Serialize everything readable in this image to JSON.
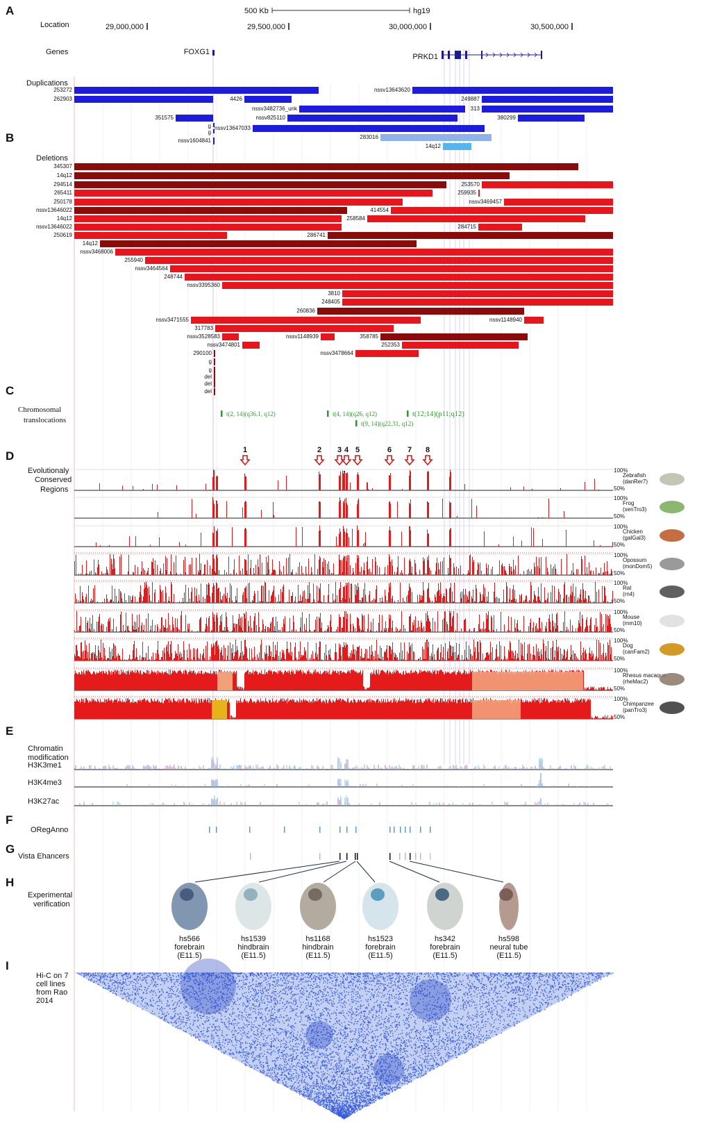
{
  "panels": [
    "A",
    "B",
    "C",
    "D",
    "E",
    "F",
    "G",
    "H",
    "I"
  ],
  "scale": {
    "label": "500 Kb",
    "assembly": "hg19"
  },
  "location": {
    "label": "Location",
    "ticks": [
      "29,000,000",
      "29,500,000",
      "30,000,000",
      "30,500,000"
    ]
  },
  "genes": {
    "label": "Genes",
    "items": [
      "FOXG1",
      "PRKD1"
    ]
  },
  "duplications": {
    "label": "Duplications",
    "items": [
      "253272",
      "nssv13643620",
      "262903",
      "4426",
      "249887",
      "nssv3482736_unk",
      "313",
      "351575",
      "nssv825110",
      "380299",
      "g",
      "nssv13647033",
      "g",
      "283016",
      "nssv1604841",
      "14q12"
    ]
  },
  "deletions": {
    "label": "Deletions",
    "items": [
      "345307",
      "14q12",
      "294514",
      "253570",
      "265411",
      "259935",
      "250178",
      "nssv3469457",
      "nssv13646022",
      "414554",
      "14q12",
      "258584",
      "nssv13646022",
      "284715",
      "250619",
      "286741",
      "14q12",
      "nssv3468006",
      "255940",
      "nssv3464564",
      "248744",
      "nssv3395360",
      "3810",
      "248405",
      "260836",
      "nssv3471555",
      "nssv1148940",
      "317783",
      "nssv3528583",
      "nssv1148939",
      "358785",
      "nssv3474801",
      "252353",
      "290100",
      "nssv3478664",
      "g",
      "g",
      "del",
      "del",
      "del"
    ]
  },
  "translocations": {
    "label": [
      "Chromosomal",
      "translocations"
    ],
    "items": [
      "t(2, 14)(q36.1, q12)",
      "t(4, 14)(q26, q12)",
      "t(12;14)(p11;q12)",
      "t(9, 14)(q22.31, q12)"
    ]
  },
  "conserved": {
    "label": [
      "Evolutionaly",
      "Conserved",
      "Regions"
    ],
    "markers": [
      "1",
      "2",
      "3",
      "4",
      "5",
      "6",
      "7",
      "8"
    ],
    "top": "100%",
    "bottom": "50%",
    "species": [
      {
        "name": "Zebrafish",
        "assembly": "(danRer7)"
      },
      {
        "name": "Frog",
        "assembly": "(xenTro3)"
      },
      {
        "name": "Chicken",
        "assembly": "(galGal3)"
      },
      {
        "name": "Opossum",
        "assembly": "(monDom5)"
      },
      {
        "name": "Rat",
        "assembly": "(rn4)"
      },
      {
        "name": "Mouse",
        "assembly": "(mm10)"
      },
      {
        "name": "Dog",
        "assembly": "(canFam2)"
      },
      {
        "name": "Rhesus macaque",
        "assembly": "(rheMac2)"
      },
      {
        "name": "Chimpanzee",
        "assembly": "(panTro3)"
      }
    ]
  },
  "chromatin": {
    "label": [
      "Chromatin",
      "modification"
    ],
    "tracks": [
      "H3K3me1",
      "H3K4me3",
      "H3K27ac"
    ]
  },
  "oreganno": "ORegAnno",
  "vista": "Vista Ehancers",
  "experimental": {
    "label": [
      "Experimental",
      "verification"
    ],
    "embryos": [
      {
        "id": "hs566",
        "region": "forebrain",
        "stage": "(E11.5)"
      },
      {
        "id": "hs1539",
        "region": "hindbrain",
        "stage": "(E11.5)"
      },
      {
        "id": "hs1168",
        "region": "hindbrain",
        "stage": "(E11.5)"
      },
      {
        "id": "hs1523",
        "region": "forebrain",
        "stage": "(E11.5)"
      },
      {
        "id": "hs342",
        "region": "forebrain",
        "stage": "(E11.5)"
      },
      {
        "id": "hs598",
        "region": "neural tube",
        "stage": "(E11.5)"
      }
    ]
  },
  "hic": {
    "label": [
      "Hi-C on 7",
      "cell lines",
      "from Rao",
      "2014"
    ]
  }
}
